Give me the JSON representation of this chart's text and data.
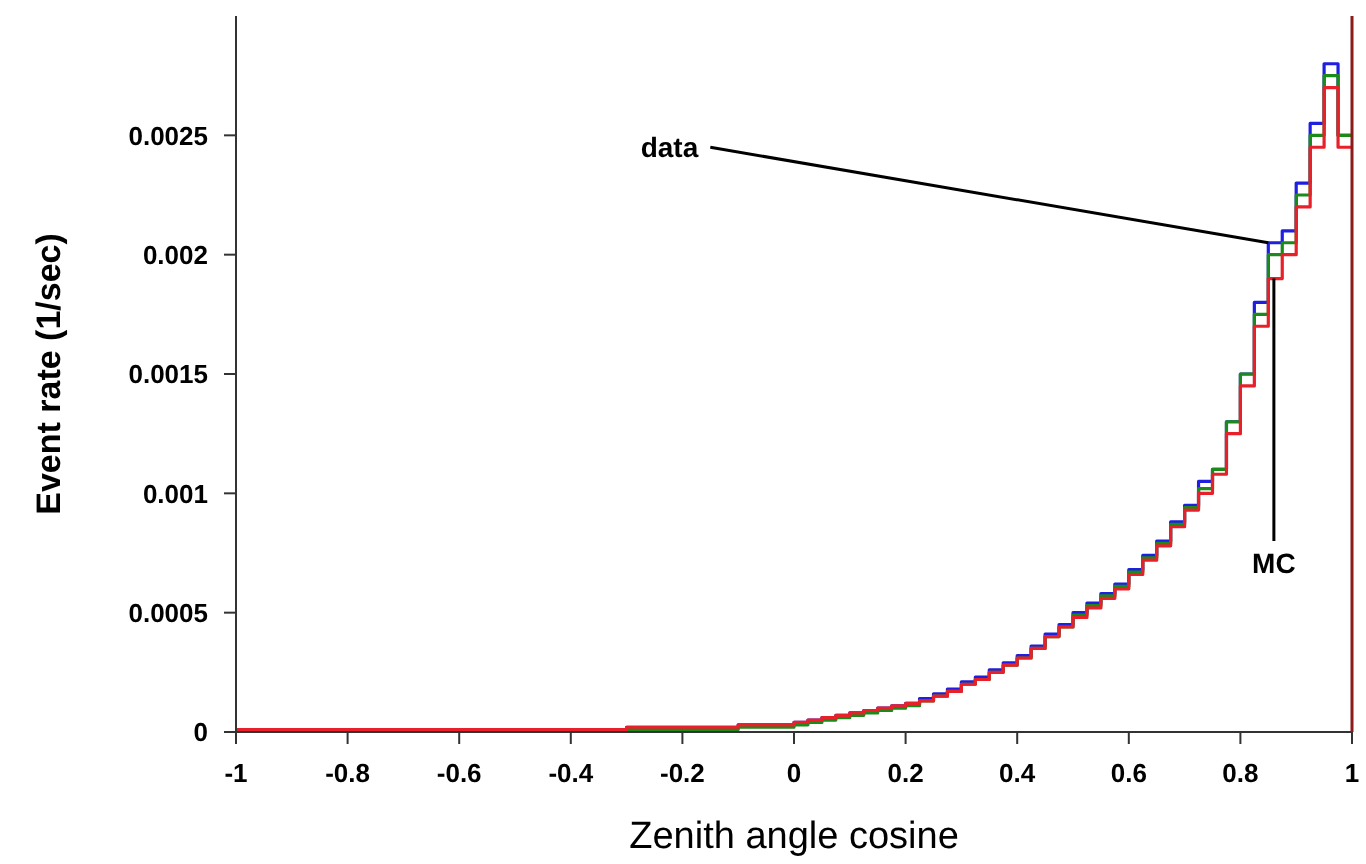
{
  "chart_data": {
    "type": "histogram",
    "xlabel": "Zenith angle cosine",
    "ylabel": "Event rate (1/sec)",
    "bins": [
      -1,
      -0.9,
      -0.8,
      -0.7,
      -0.6,
      -0.5,
      -0.4,
      -0.3,
      -0.2,
      -0.1,
      0,
      0.025,
      0.05,
      0.075,
      0.1,
      0.125,
      0.15,
      0.175,
      0.2,
      0.225,
      0.25,
      0.275,
      0.3,
      0.325,
      0.35,
      0.375,
      0.4,
      0.425,
      0.45,
      0.475,
      0.5,
      0.525,
      0.55,
      0.575,
      0.6,
      0.625,
      0.65,
      0.675,
      0.7,
      0.725,
      0.75,
      0.775,
      0.8,
      0.825,
      0.85,
      0.875,
      0.9,
      0.925,
      0.95,
      0.975,
      1
    ],
    "series": [
      {
        "color": "#1f1fe0",
        "values": [
          1e-05,
          1e-05,
          1e-05,
          1e-05,
          1e-05,
          1e-05,
          1e-05,
          2e-05,
          2e-05,
          3e-05,
          4e-05,
          5e-05,
          6e-05,
          7e-05,
          8e-05,
          9e-05,
          0.0001,
          0.00011,
          0.00012,
          0.00014,
          0.00016,
          0.00018,
          0.00021,
          0.00023,
          0.00026,
          0.00029,
          0.00032,
          0.00036,
          0.00041,
          0.00045,
          0.0005,
          0.00054,
          0.00058,
          0.00062,
          0.00068,
          0.00074,
          0.0008,
          0.00088,
          0.00095,
          0.00105,
          0.0011,
          0.0013,
          0.0015,
          0.0018,
          0.00205,
          0.0021,
          0.0023,
          0.00255,
          0.0028,
          0.0025
        ]
      },
      {
        "color": "#1a8a1a",
        "values": [
          0,
          0,
          0,
          0,
          0,
          1e-05,
          1e-05,
          1e-05,
          1e-05,
          2e-05,
          3e-05,
          4e-05,
          5e-05,
          6e-05,
          7e-05,
          8e-05,
          9e-05,
          0.0001,
          0.00011,
          0.00013,
          0.00015,
          0.00017,
          0.0002,
          0.00022,
          0.00025,
          0.00028,
          0.00031,
          0.00035,
          0.0004,
          0.00044,
          0.00049,
          0.00053,
          0.00057,
          0.00061,
          0.00067,
          0.00073,
          0.00079,
          0.00087,
          0.00094,
          0.00102,
          0.0011,
          0.0013,
          0.0015,
          0.00175,
          0.002,
          0.00205,
          0.00225,
          0.0025,
          0.00275,
          0.0025
        ]
      },
      {
        "color": "#e8202a",
        "values": [
          1e-05,
          1e-05,
          1e-05,
          1e-05,
          1e-05,
          1e-05,
          1e-05,
          2e-05,
          2e-05,
          3e-05,
          4e-05,
          5e-05,
          6e-05,
          7e-05,
          8e-05,
          9e-05,
          0.0001,
          0.00011,
          0.00012,
          0.00013,
          0.00015,
          0.00017,
          0.0002,
          0.00022,
          0.00025,
          0.00028,
          0.00031,
          0.00035,
          0.0004,
          0.00044,
          0.00048,
          0.00052,
          0.00056,
          0.0006,
          0.00066,
          0.00072,
          0.00078,
          0.00086,
          0.00093,
          0.001,
          0.00108,
          0.00125,
          0.00145,
          0.0017,
          0.0019,
          0.002,
          0.0022,
          0.00245,
          0.0027,
          0.00245
        ]
      }
    ],
    "annotations": [
      {
        "text": "data",
        "x": 0.85,
        "y": 0.00205
      },
      {
        "text": "MC",
        "x": 0.86,
        "y": 0.0019
      }
    ],
    "xlim": [
      -1,
      1
    ],
    "ylim": [
      0,
      0.003
    ],
    "xticks": [
      -1,
      -0.8,
      -0.6,
      -0.4,
      -0.2,
      0,
      0.2,
      0.4,
      0.6,
      0.8,
      1
    ],
    "yticks": [
      0,
      0.0005,
      0.001,
      0.0015,
      0.002,
      0.0025
    ],
    "marker": "none"
  }
}
